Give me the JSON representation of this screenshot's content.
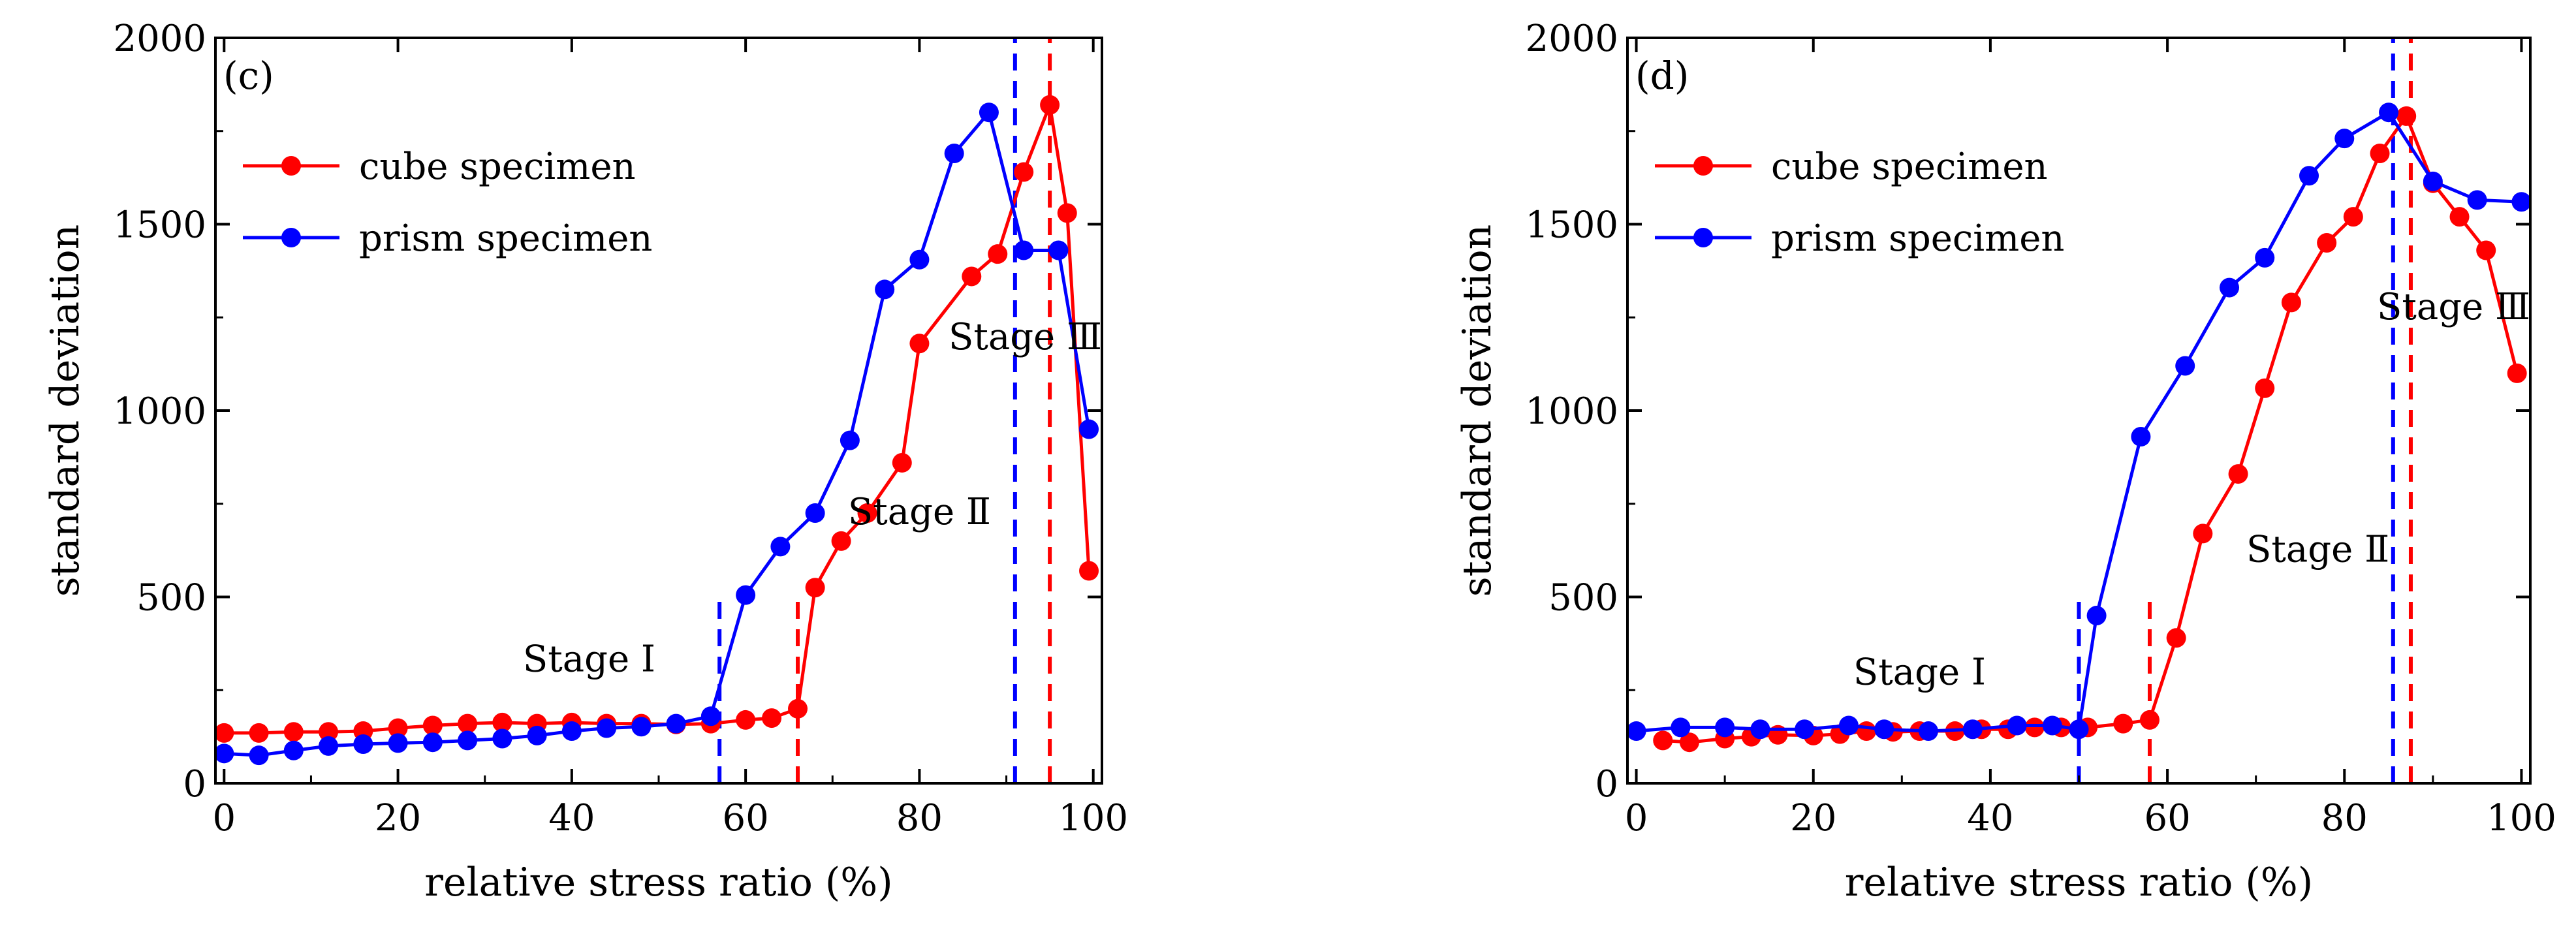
{
  "chart_data": [
    {
      "type": "line",
      "panel_label": "(c)",
      "xlabel": "relative stress ratio (%)",
      "ylabel": "standard deviation",
      "xlim": [
        -1,
        101
      ],
      "ylim": [
        0,
        2000
      ],
      "xticks": [
        "0",
        "20",
        "40",
        "60",
        "80",
        "100"
      ],
      "yticks": [
        "0",
        "500",
        "1000",
        "1500",
        "2000"
      ],
      "legend": {
        "position": "top-left",
        "entries": [
          "cube specimen",
          "prism specimen"
        ]
      },
      "series": [
        {
          "name": "cube specimen",
          "color": "#ff0000",
          "x": [
            0,
            4,
            8,
            12,
            16,
            20,
            24,
            28,
            32,
            36,
            40,
            44,
            48,
            52,
            56,
            60,
            63,
            66,
            68,
            71,
            74,
            78,
            80,
            86,
            89,
            92,
            95,
            97,
            99.5
          ],
          "y": [
            135,
            135,
            138,
            138,
            140,
            148,
            155,
            160,
            163,
            160,
            163,
            160,
            160,
            158,
            160,
            170,
            175,
            200,
            525,
            650,
            725,
            860,
            1180,
            1360,
            1420,
            1640,
            1820,
            1530,
            570
          ]
        },
        {
          "name": "prism specimen",
          "color": "#0000ff",
          "x": [
            0,
            4,
            8,
            12,
            16,
            20,
            24,
            28,
            32,
            36,
            40,
            44,
            48,
            52,
            56,
            60,
            64,
            68,
            72,
            76,
            80,
            84,
            88,
            92,
            96,
            99.5
          ],
          "y": [
            80,
            75,
            88,
            100,
            105,
            108,
            110,
            115,
            120,
            128,
            140,
            148,
            152,
            160,
            180,
            505,
            635,
            725,
            920,
            1325,
            1405,
            1690,
            1800,
            1430,
            1430,
            950
          ]
        }
      ],
      "dashed_lines": [
        {
          "x": 57,
          "color": "#0000ff",
          "y_top": 500
        },
        {
          "x": 66,
          "color": "#ff0000",
          "y_top": 500
        },
        {
          "x": 91,
          "color": "#0000ff",
          "y_top": 2000
        },
        {
          "x": 95,
          "color": "#ff0000",
          "y_top": 2000
        }
      ],
      "annotations": [
        {
          "text": "Stage Ⅰ",
          "x": 42,
          "y": 300
        },
        {
          "text": "Stage Ⅱ",
          "x": 80,
          "y": 695
        },
        {
          "text": "Stage Ⅲ",
          "x": 101,
          "y": 1165
        }
      ]
    },
    {
      "type": "line",
      "panel_label": "(d)",
      "xlabel": "relative stress ratio (%)",
      "ylabel": "standard deviation",
      "xlim": [
        -1,
        101
      ],
      "ylim": [
        0,
        2000
      ],
      "xticks": [
        "0",
        "20",
        "40",
        "60",
        "80",
        "100"
      ],
      "yticks": [
        "0",
        "500",
        "1000",
        "1500",
        "2000"
      ],
      "legend": {
        "position": "top-left",
        "entries": [
          "cube specimen",
          "prism specimen"
        ]
      },
      "series": [
        {
          "name": "cube specimen",
          "color": "#ff0000",
          "x": [
            3,
            6,
            10,
            13,
            16,
            20,
            23,
            26,
            29,
            32,
            36,
            39,
            42,
            45,
            48,
            51,
            55,
            58,
            61,
            64,
            68,
            71,
            74,
            78,
            81,
            84,
            87,
            90,
            93,
            96,
            99.5
          ],
          "y": [
            115,
            110,
            120,
            125,
            130,
            128,
            132,
            140,
            138,
            140,
            140,
            145,
            145,
            150,
            150,
            150,
            160,
            170,
            390,
            670,
            830,
            1060,
            1290,
            1450,
            1520,
            1690,
            1790,
            1610,
            1520,
            1430,
            1100
          ]
        },
        {
          "name": "prism specimen",
          "color": "#0000ff",
          "x": [
            0,
            5,
            10,
            14,
            19,
            24,
            28,
            33,
            38,
            43,
            47,
            50,
            52,
            57,
            62,
            67,
            71,
            76,
            80,
            85,
            90,
            95,
            100
          ],
          "y": [
            140,
            150,
            150,
            145,
            145,
            155,
            145,
            140,
            145,
            155,
            155,
            145,
            450,
            930,
            1120,
            1330,
            1410,
            1630,
            1730,
            1800,
            1615,
            1565,
            1560
          ]
        }
      ],
      "dashed_lines": [
        {
          "x": 50,
          "color": "#0000ff",
          "y_top": 500
        },
        {
          "x": 58,
          "color": "#ff0000",
          "y_top": 500
        },
        {
          "x": 85.5,
          "color": "#0000ff",
          "y_top": 2000
        },
        {
          "x": 87.5,
          "color": "#ff0000",
          "y_top": 2000
        }
      ],
      "annotations": [
        {
          "text": "Stage Ⅰ",
          "x": 32,
          "y": 265
        },
        {
          "text": "Stage Ⅱ",
          "x": 77,
          "y": 595
        },
        {
          "text": "Stage Ⅲ",
          "x": 101,
          "y": 1245
        }
      ]
    }
  ]
}
